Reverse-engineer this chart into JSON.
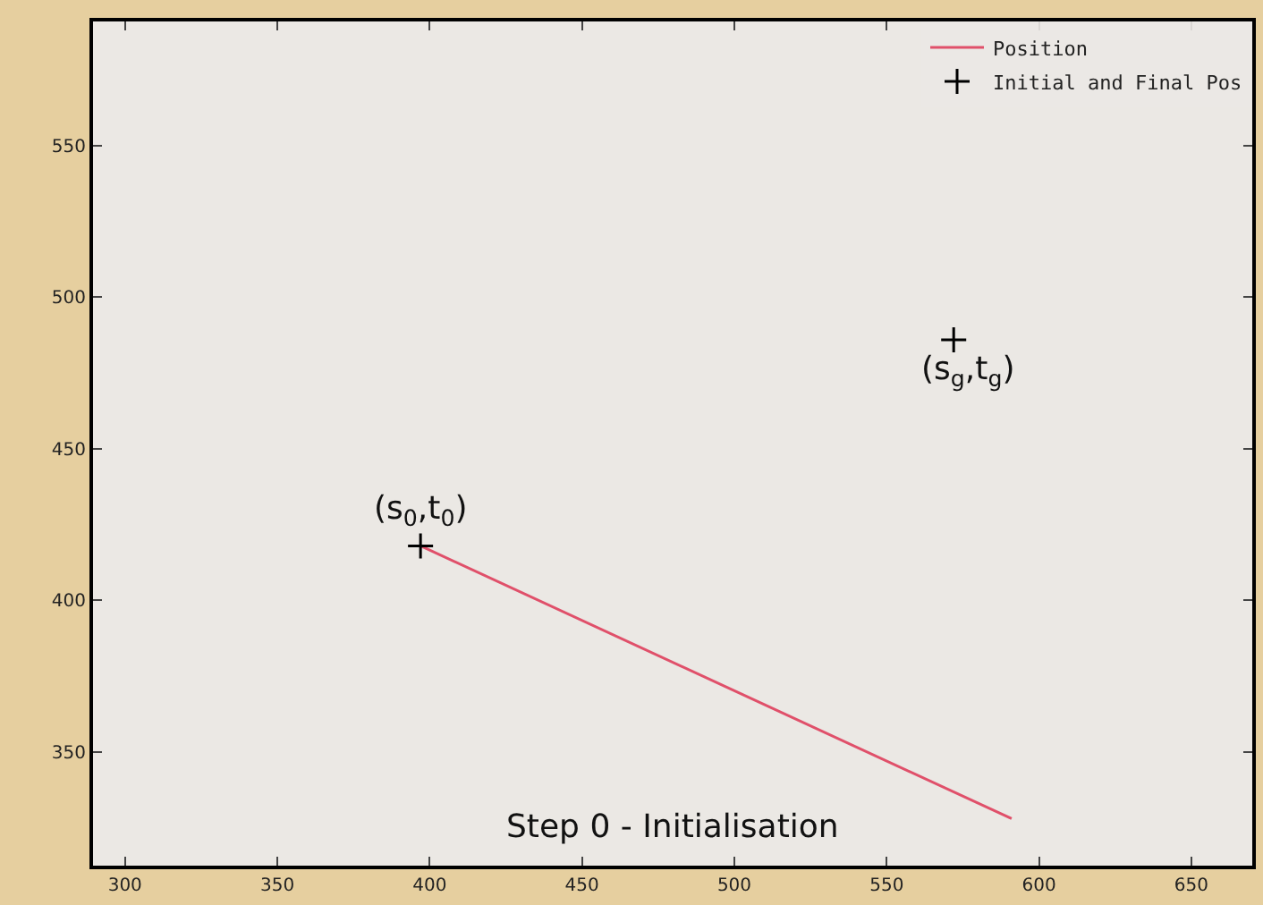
{
  "chart_data": {
    "type": "line",
    "xlim": [
      289.5,
      670
    ],
    "xticks": [
      300,
      350,
      400,
      450,
      500,
      550,
      600,
      650
    ],
    "ylim": [
      312.5,
      591
    ],
    "yticks": [
      350,
      400,
      450,
      500,
      550
    ],
    "grid": false,
    "legend": "top right",
    "series": [
      {
        "name": "Position",
        "color": "#e0506a",
        "x": [
          397,
          591
        ],
        "values": [
          418,
          328
        ]
      },
      {
        "name": "Initial and Final Pos",
        "type": "scatter",
        "marker": "cross",
        "color": "#000000",
        "x": [
          397,
          572
        ],
        "values": [
          418,
          486
        ]
      }
    ],
    "annotations": [
      {
        "text": "(s$_{0}$,t$_{0}$)",
        "x": 397,
        "y": 418
      },
      {
        "text": "(s$_{g}$,t$_{g}$)",
        "x": 572,
        "y": 486
      },
      "Step 0 - Initialisation"
    ]
  }
}
